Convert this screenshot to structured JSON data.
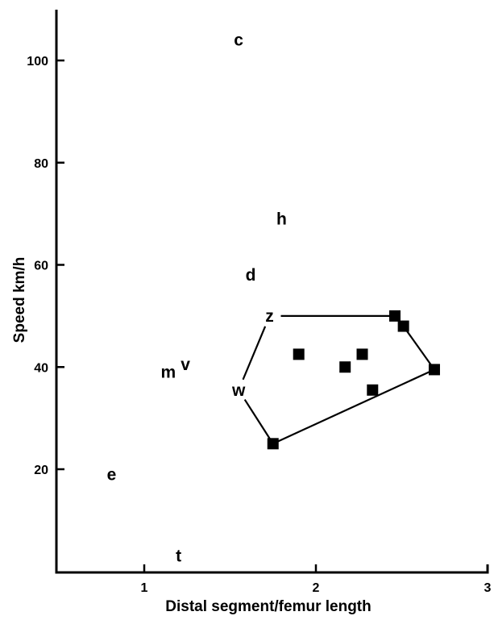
{
  "chart_data": {
    "type": "scatter",
    "xlabel": "Distal segment/femur length",
    "ylabel": "Speed km/h",
    "xlim": [
      0.55,
      3.0
    ],
    "ylim": [
      0,
      110
    ],
    "xticks": [
      1,
      2,
      3
    ],
    "xtick_labels": [
      "1",
      "2",
      "3"
    ],
    "yticks": [
      20,
      40,
      60,
      80,
      100
    ],
    "ytick_labels": [
      "20",
      "40",
      "60",
      "80",
      "100"
    ],
    "grid": false,
    "series": [
      {
        "marker": "letter",
        "points": [
          {
            "label": "c",
            "x": 1.55,
            "y": 104
          },
          {
            "label": "h",
            "x": 1.8,
            "y": 69
          },
          {
            "label": "d",
            "x": 1.62,
            "y": 58
          },
          {
            "label": "z",
            "x": 1.73,
            "y": 50
          },
          {
            "label": "v",
            "x": 1.24,
            "y": 40.5
          },
          {
            "label": "m",
            "x": 1.14,
            "y": 39
          },
          {
            "label": "w",
            "x": 1.55,
            "y": 35.5
          },
          {
            "label": "e",
            "x": 0.81,
            "y": 19
          },
          {
            "label": "t",
            "x": 1.2,
            "y": 3
          }
        ]
      },
      {
        "marker": "square",
        "points": [
          {
            "x": 1.9,
            "y": 42.5
          },
          {
            "x": 2.17,
            "y": 40
          },
          {
            "x": 2.27,
            "y": 42.5
          },
          {
            "x": 2.33,
            "y": 35.5
          },
          {
            "x": 2.46,
            "y": 50
          },
          {
            "x": 2.51,
            "y": 48
          },
          {
            "x": 2.69,
            "y": 39.5
          },
          {
            "x": 1.75,
            "y": 25
          }
        ]
      }
    ],
    "hull": [
      {
        "x": 1.73,
        "y": 50
      },
      {
        "x": 2.46,
        "y": 50
      },
      {
        "x": 2.51,
        "y": 48
      },
      {
        "x": 2.69,
        "y": 39.5
      },
      {
        "x": 1.75,
        "y": 25
      },
      {
        "x": 1.55,
        "y": 35.5
      }
    ]
  }
}
